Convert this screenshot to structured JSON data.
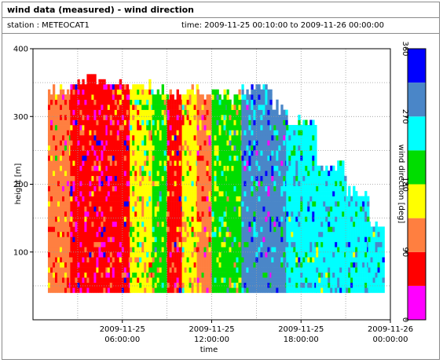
{
  "header": {
    "title": "wind data (measured) - wind direction",
    "station": "station : METEOCAT1",
    "time_range": "time: 2009-11-25 00:10:00 to 2009-11-26 00:00:00"
  },
  "chart_data": {
    "type": "heatmap",
    "xlabel": "time",
    "ylabel": "height [m]",
    "x_range_hours": [
      0,
      24
    ],
    "ylim": [
      0,
      400
    ],
    "x_ticks": [
      {
        "hour": 6,
        "line1": "2009-11-25",
        "line2": "06:00:00"
      },
      {
        "hour": 12,
        "line1": "2009-11-25",
        "line2": "12:00:00"
      },
      {
        "hour": 18,
        "line1": "2009-11-25",
        "line2": "18:00:00"
      },
      {
        "hour": 24,
        "line1": "2009-11-26",
        "line2": "00:00:00"
      }
    ],
    "y_ticks": [
      100,
      200,
      300,
      400
    ],
    "grid": true,
    "colorbar": {
      "label": "wind direction [deg]",
      "ticks": [
        0,
        90,
        180,
        270,
        360
      ],
      "bins": [
        {
          "from": 0,
          "to": 45,
          "color": "#ff00ff"
        },
        {
          "from": 45,
          "to": 90,
          "color": "#ff0000"
        },
        {
          "from": 90,
          "to": 135,
          "color": "#ff7f40"
        },
        {
          "from": 135,
          "to": 180,
          "color": "#ffff00"
        },
        {
          "from": 180,
          "to": 225,
          "color": "#00dd00"
        },
        {
          "from": 225,
          "to": 270,
          "color": "#00ffff"
        },
        {
          "from": 270,
          "to": 315,
          "color": "#4a86c8"
        },
        {
          "from": 315,
          "to": 360,
          "color": "#0000ff"
        }
      ]
    },
    "height_range_m": [
      40,
      360
    ],
    "time_segments": [
      {
        "from_hour": 1.0,
        "to_hour": 2.5,
        "direction_deg": 105,
        "top_m": 350
      },
      {
        "from_hour": 2.5,
        "to_hour": 5.0,
        "direction_deg": 60,
        "top_m": 360
      },
      {
        "from_hour": 5.0,
        "to_hour": 6.5,
        "direction_deg": 65,
        "top_m": 350
      },
      {
        "from_hour": 6.5,
        "to_hour": 8.0,
        "direction_deg": 160,
        "top_m": 350
      },
      {
        "from_hour": 8.0,
        "to_hour": 9.0,
        "direction_deg": 190,
        "top_m": 345
      },
      {
        "from_hour": 9.0,
        "to_hour": 10.0,
        "direction_deg": 70,
        "top_m": 340
      },
      {
        "from_hour": 10.0,
        "to_hour": 11.0,
        "direction_deg": 150,
        "top_m": 345
      },
      {
        "from_hour": 11.0,
        "to_hour": 12.0,
        "direction_deg": 110,
        "top_m": 340
      },
      {
        "from_hour": 12.0,
        "to_hour": 13.0,
        "direction_deg": 200,
        "top_m": 340
      },
      {
        "from_hour": 13.0,
        "to_hour": 14.0,
        "direction_deg": 195,
        "top_m": 335
      },
      {
        "from_hour": 14.0,
        "to_hour": 16.0,
        "direction_deg": 290,
        "top_m": 350
      },
      {
        "from_hour": 16.0,
        "to_hour": 17.0,
        "direction_deg": 280,
        "top_m": 320
      },
      {
        "from_hour": 17.0,
        "to_hour": 19.0,
        "direction_deg": 250,
        "top_m": 300
      },
      {
        "from_hour": 19.0,
        "to_hour": 21.0,
        "direction_deg": 250,
        "top_m": 230
      },
      {
        "from_hour": 21.0,
        "to_hour": 22.5,
        "direction_deg": 250,
        "top_m": 195
      },
      {
        "from_hour": 22.5,
        "to_hour": 23.5,
        "direction_deg": 255,
        "top_m": 150
      }
    ]
  }
}
